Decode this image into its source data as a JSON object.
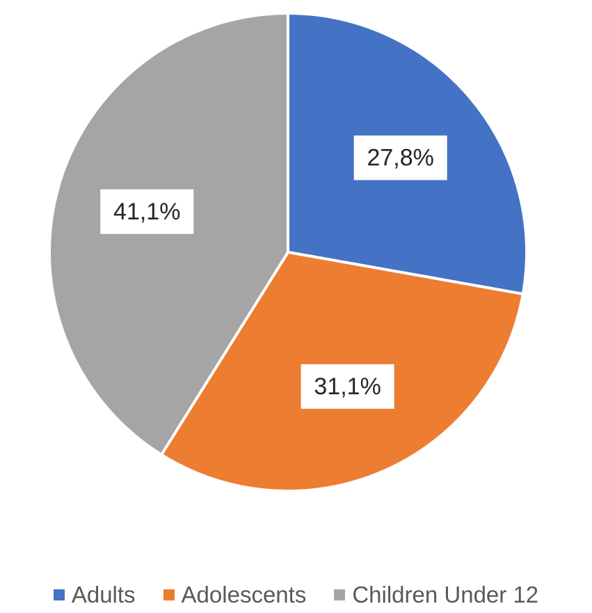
{
  "chart_data": {
    "type": "pie",
    "slices": [
      {
        "label": "Adults",
        "value": 27.8,
        "display": "27,8%",
        "color": "#4472C4"
      },
      {
        "label": "Adolescents",
        "value": 31.1,
        "display": "31,1%",
        "color": "#ED7D31"
      },
      {
        "label": "Children Under 12",
        "value": 41.1,
        "display": "41,1%",
        "color": "#A5A5A5"
      }
    ],
    "start_angle_deg": 0,
    "direction": "clockwise",
    "legend_position": "bottom",
    "data_labels": true
  }
}
